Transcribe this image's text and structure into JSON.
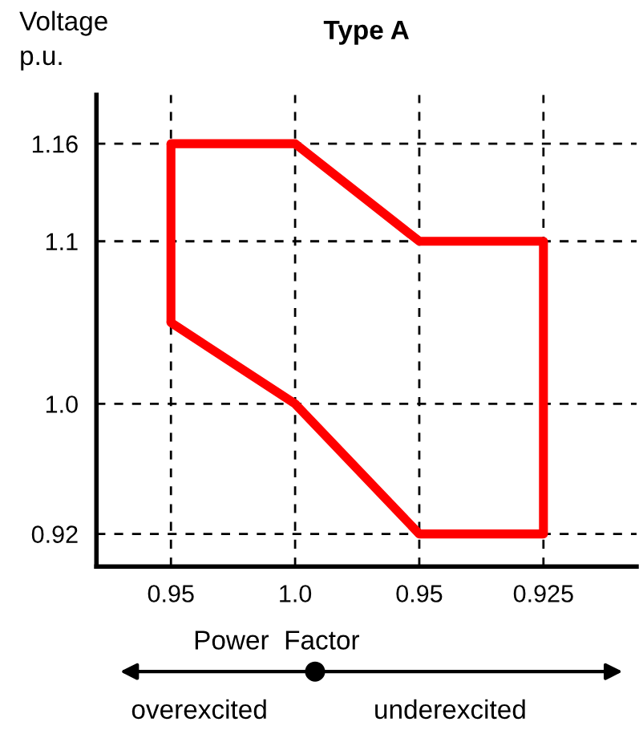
{
  "chart_data": {
    "type": "line",
    "title": "Type A",
    "xlabel": "Power  Factor",
    "ylabel": "Voltage\np.u.",
    "categories": [
      "0.95",
      "1.0",
      "0.95",
      "0.925"
    ],
    "series": [
      {
        "color": "#ff0000",
        "values": [
          1.16,
          1.16,
          1.1,
          1.1
        ],
        "errors": [
          [
            1.05,
            1.16
          ],
          null,
          null,
          null
        ]
      },
      {
        "color": "#ff0000",
        "values": [
          1.05,
          1.0,
          0.92,
          0.92
        ],
        "errors": [
          null,
          null,
          null,
          [
            0.92,
            1.1
          ]
        ]
      }
    ],
    "ylim": [
      0.9,
      1.19
    ],
    "yticks": [
      0.92,
      {
        "value": 1,
        "label": "1.0"
      },
      1.1,
      1.16
    ],
    "grid": true,
    "line_style": "solid",
    "annotations": [
      "overexcited",
      "underexcited"
    ]
  }
}
